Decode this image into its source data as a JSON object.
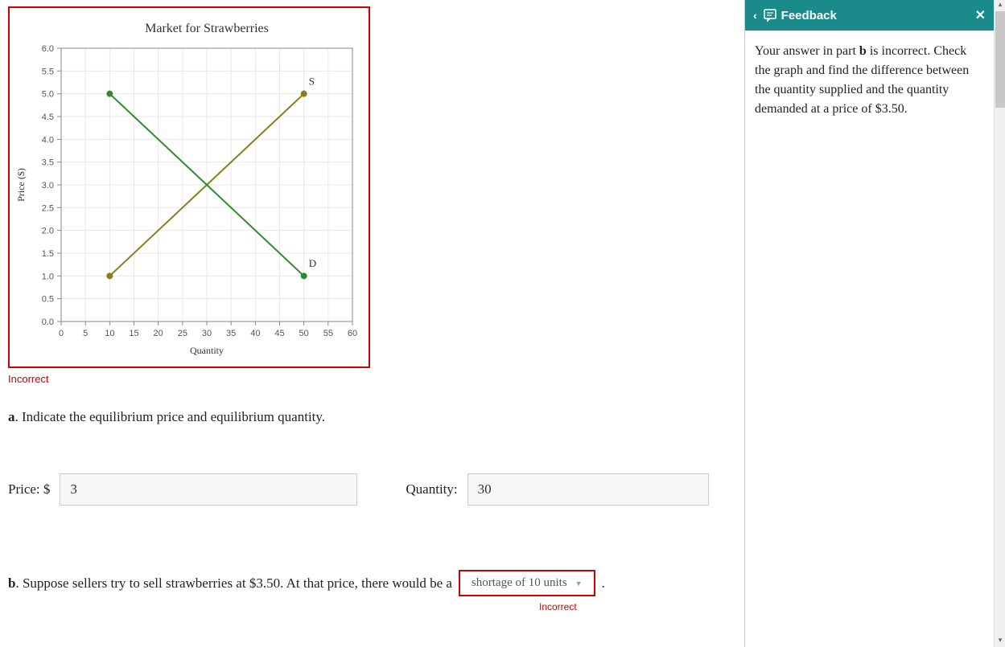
{
  "chart": {
    "type": "line",
    "title": "Market for Strawberries",
    "title_fontsize": 16,
    "xlabel": "Quantity",
    "ylabel": "Price ($)",
    "label_fontsize": 12,
    "xlim": [
      0,
      60
    ],
    "ylim": [
      0,
      6
    ],
    "xtick_step": 5,
    "ytick_step": 0.5,
    "xticks": [
      0,
      5,
      10,
      15,
      20,
      25,
      30,
      35,
      40,
      45,
      50,
      55,
      60
    ],
    "yticks": [
      "0.0",
      "0.5",
      "1.0",
      "1.5",
      "2.0",
      "2.5",
      "3.0",
      "3.5",
      "4.0",
      "4.5",
      "5.0",
      "5.5",
      "6.0"
    ],
    "grid_color": "#e8e8e8",
    "border_color": "#888888",
    "background_color": "#ffffff",
    "tick_fontsize": 11,
    "series": [
      {
        "name": "S",
        "label": "S",
        "color": "#8a7d1e",
        "points": [
          [
            10,
            1.0
          ],
          [
            50,
            5.0
          ]
        ],
        "marker": "circle",
        "marker_color": "#8a7d1e",
        "line_width": 2,
        "label_pos": [
          51,
          5.2
        ]
      },
      {
        "name": "D",
        "label": "D",
        "color": "#2e8b2e",
        "points": [
          [
            10,
            5.0
          ],
          [
            50,
            1.0
          ]
        ],
        "marker": "circle",
        "marker_color": "#2e8b2e",
        "line_width": 2,
        "label_pos": [
          51,
          1.2
        ]
      }
    ]
  },
  "status": {
    "chart_incorrect": "Incorrect",
    "dropdown_incorrect": "Incorrect"
  },
  "part_a": {
    "prompt_prefix": "a",
    "prompt": ". Indicate the equilibrium price and equilibrium quantity.",
    "price_label": "Price: $",
    "price_value": "3",
    "quantity_label": "Quantity:",
    "quantity_value": "30"
  },
  "part_b": {
    "prefix": "b",
    "text_before": ". Suppose sellers try to sell strawberries at $3.50. At that price, there would be a",
    "dropdown_value": "shortage of 10 units",
    "text_after": "."
  },
  "feedback": {
    "title": "Feedback",
    "body_1": "Your answer in part ",
    "body_bold": "b",
    "body_2": " is incorrect. Check the graph and find the difference between the quantity supplied and the quantity demanded at a price of $3.50."
  }
}
